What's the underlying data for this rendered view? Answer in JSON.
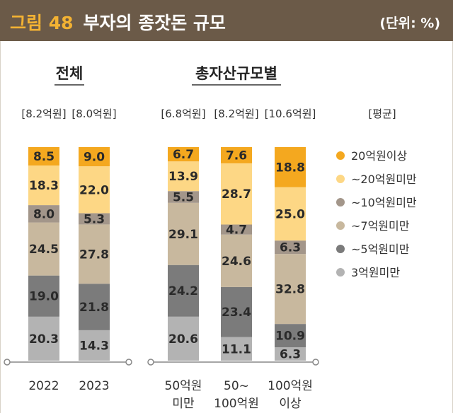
{
  "header": {
    "figure_number": "그림 48",
    "title": "부자의 종잣돈 규모",
    "unit": "(단위: %)"
  },
  "chart_data": {
    "type": "bar",
    "stacked": true,
    "groups": [
      {
        "title": "전체",
        "categories": [
          "2022",
          "2023"
        ]
      },
      {
        "title": "총자산규모별",
        "categories": [
          "50억원 미만",
          "50~ 100억원",
          "100억원 이상"
        ]
      }
    ],
    "categories": [
      "2022",
      "2023",
      "50억원 미만",
      "50~ 100억원",
      "100억원 이상"
    ],
    "category_lines": [
      [
        "2022"
      ],
      [
        "2023"
      ],
      [
        "50억원",
        "미만"
      ],
      [
        "50~",
        "100억원"
      ],
      [
        "100억원",
        "이상"
      ]
    ],
    "averages": [
      "[8.2억원]",
      "[8.0억원]",
      "[6.8억원]",
      "[8.2억원]",
      "[10.6억원]"
    ],
    "average_legend_label": "[평균]",
    "series": [
      {
        "name": "3억원미만",
        "color": "#b3b3b3",
        "values": [
          20.3,
          14.3,
          20.6,
          11.1,
          6.3
        ]
      },
      {
        "name": "~5억원미만",
        "color": "#7b7b7b",
        "values": [
          19.0,
          21.8,
          24.2,
          23.4,
          10.9
        ]
      },
      {
        "name": "~7억원미만",
        "color": "#c8b89e",
        "values": [
          24.5,
          27.8,
          29.1,
          24.6,
          32.8
        ]
      },
      {
        "name": "~10억원미만",
        "color": "#a3968a",
        "values": [
          8.0,
          5.3,
          5.5,
          4.7,
          6.3
        ]
      },
      {
        "name": "~20억원미만",
        "color": "#fdd785",
        "values": [
          18.3,
          22.0,
          13.9,
          28.7,
          25.0
        ]
      },
      {
        "name": "20억원이상",
        "color": "#f4a81f",
        "values": [
          8.5,
          9.0,
          6.7,
          7.6,
          18.8
        ]
      }
    ],
    "legend_order": [
      "20억원이상",
      "~20억원미만",
      "~10억원미만",
      "~7억원미만",
      "~5억원미만",
      "3억원미만"
    ],
    "ylim": [
      0,
      100
    ],
    "xlabel": "",
    "ylabel": ""
  }
}
